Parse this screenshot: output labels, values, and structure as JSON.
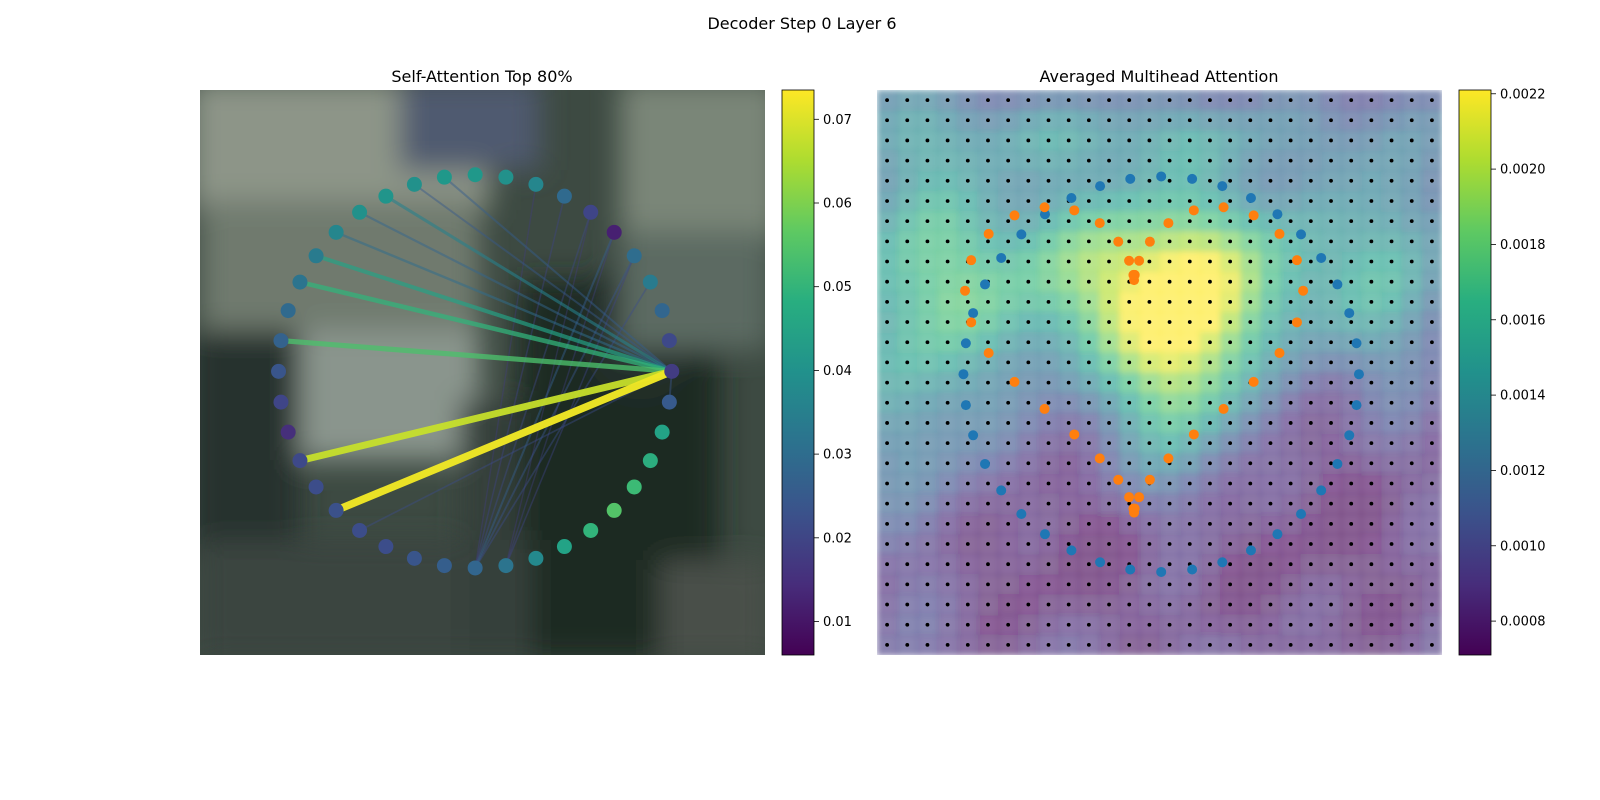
{
  "figure": {
    "suptitle": "Decoder Step 0 Layer 6"
  },
  "chart_data": [
    {
      "type": "scatter",
      "title": "Self-Attention Top 80%",
      "background": "blurred video frame (dim office scene)",
      "points_shape": "circle of 40 keypoints",
      "num_points": 40,
      "colormap": "viridis",
      "colorbar": {
        "range": [
          0.006,
          0.0735
        ],
        "ticks": [
          0.01,
          0.02,
          0.03,
          0.04,
          0.05,
          0.06,
          0.07
        ],
        "tick_labels": [
          "0.01",
          "0.02",
          "0.03",
          "0.04",
          "0.05",
          "0.06",
          "0.07"
        ]
      },
      "point_values": [
        0.042,
        0.04,
        0.037,
        0.029,
        0.02,
        0.012,
        0.03,
        0.034,
        0.028,
        0.021,
        0.018,
        0.025,
        0.045,
        0.048,
        0.052,
        0.055,
        0.05,
        0.045,
        0.038,
        0.032,
        0.028,
        0.026,
        0.024,
        0.022,
        0.022,
        0.023,
        0.022,
        0.021,
        0.015,
        0.02,
        0.024,
        0.027,
        0.029,
        0.032,
        0.034,
        0.037,
        0.04,
        0.041,
        0.04,
        0.042
      ],
      "attention_edges": [
        {
          "from": 10,
          "to": 25,
          "weight": 0.072
        },
        {
          "from": 10,
          "to": 27,
          "weight": 0.068
        },
        {
          "from": 10,
          "to": 31,
          "weight": 0.054
        },
        {
          "from": 10,
          "to": 33,
          "weight": 0.05
        },
        {
          "from": 10,
          "to": 34,
          "weight": 0.045
        },
        {
          "from": 10,
          "to": 37,
          "weight": 0.036
        },
        {
          "from": 10,
          "to": 35,
          "weight": 0.03
        },
        {
          "from": 10,
          "to": 36,
          "weight": 0.028
        },
        {
          "from": 10,
          "to": 39,
          "weight": 0.026
        },
        {
          "from": 10,
          "to": 38,
          "weight": 0.025
        },
        {
          "from": 10,
          "to": 11,
          "weight": 0.024
        },
        {
          "from": 10,
          "to": 24,
          "weight": 0.022
        },
        {
          "from": 20,
          "to": 5,
          "weight": 0.026
        },
        {
          "from": 20,
          "to": 6,
          "weight": 0.024
        },
        {
          "from": 20,
          "to": 7,
          "weight": 0.022
        },
        {
          "from": 20,
          "to": 4,
          "weight": 0.021
        },
        {
          "from": 20,
          "to": 3,
          "weight": 0.02
        },
        {
          "from": 20,
          "to": 2,
          "weight": 0.018
        },
        {
          "from": 19,
          "to": 6,
          "weight": 0.02
        },
        {
          "from": 19,
          "to": 5,
          "weight": 0.019
        },
        {
          "from": 19,
          "to": 4,
          "weight": 0.018
        }
      ]
    },
    {
      "type": "heatmap",
      "title": "Averaged Multihead Attention",
      "background": "same video frame overlaid with attention heatmap",
      "grid_size": [
        28,
        28
      ],
      "colormap": "viridis",
      "colorbar": {
        "range": [
          0.00071,
          0.00221
        ],
        "ticks": [
          0.0008,
          0.001,
          0.0012,
          0.0014,
          0.0016,
          0.0018,
          0.002,
          0.0022
        ],
        "tick_labels": [
          "0.0008",
          "0.0010",
          "0.0012",
          "0.0014",
          "0.0016",
          "0.0018",
          "0.0020",
          "0.0022"
        ]
      },
      "overlays": [
        {
          "kind": "grid_points",
          "color": "#000000"
        },
        {
          "kind": "keypoints_circle",
          "color": "#1f77b4",
          "count": 40
        },
        {
          "kind": "keypoints_heart",
          "color": "#ff7f0e",
          "count": 40
        }
      ]
    }
  ]
}
